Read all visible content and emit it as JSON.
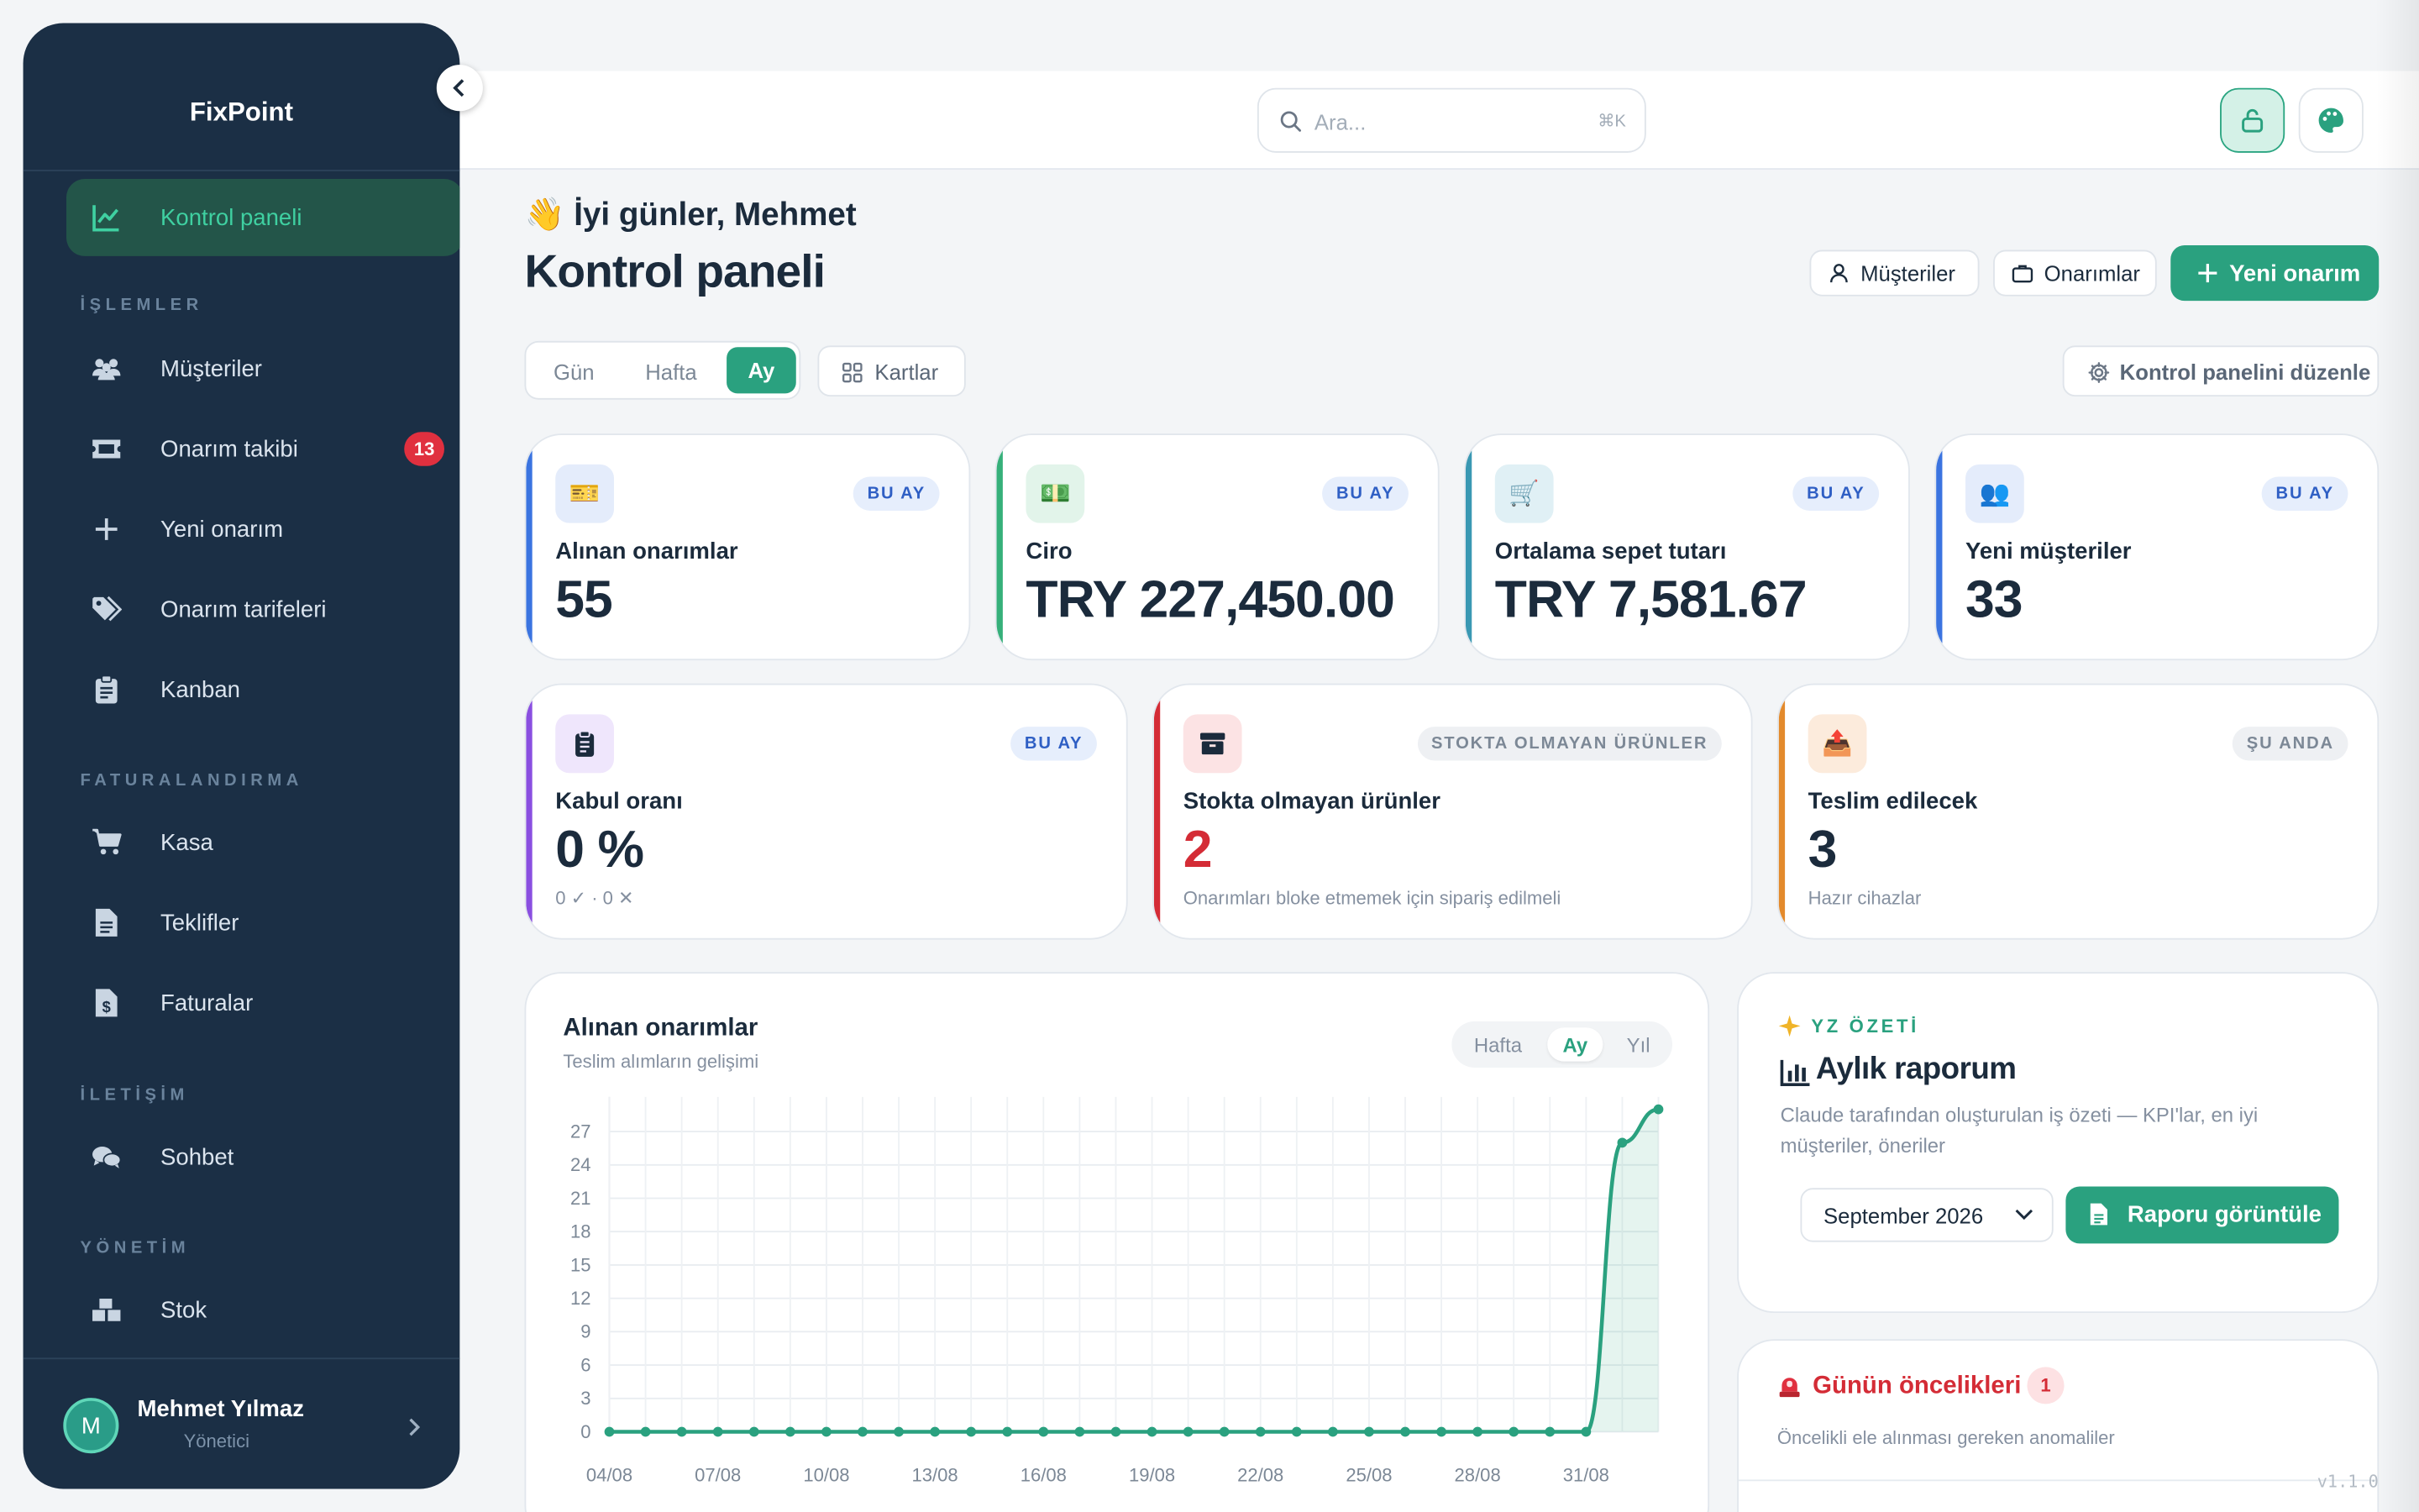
{
  "app": {
    "name": "FixPoint",
    "version": "v1.1.0"
  },
  "sidebar": {
    "active": {
      "label": "Kontrol paneli"
    },
    "sections": {
      "islemler": "İŞLEMLER",
      "faturalandirma": "FATURALANDIRMA",
      "iletisim": "İLETİŞİM",
      "yonetim": "YÖNETİM"
    },
    "items": {
      "musteriler": "Müşteriler",
      "onarim_takibi": "Onarım takibi",
      "onarim_takibi_badge": "13",
      "yeni_onarim": "Yeni onarım",
      "onarim_tarifeleri": "Onarım tarifeleri",
      "kanban": "Kanban",
      "kasa": "Kasa",
      "teklifler": "Teklifler",
      "faturalar": "Faturalar",
      "sohbet": "Sohbet",
      "stok": "Stok"
    },
    "user": {
      "initial": "M",
      "name": "Mehmet Yılmaz",
      "role": "Yönetici"
    }
  },
  "topbar": {
    "search_placeholder": "Ara...",
    "shortcut": "⌘K"
  },
  "header": {
    "greeting": "👋 İyi günler, Mehmet",
    "title": "Kontrol paneli",
    "btn_customers": "Müşteriler",
    "btn_repairs": "Onarımlar",
    "btn_new": "Yeni onarım"
  },
  "toolbar": {
    "periods": [
      "Gün",
      "Hafta",
      "Ay"
    ],
    "active_period": "Ay",
    "cards_label": "Kartlar",
    "edit_label": "Kontrol panelini düzenle"
  },
  "kpis_row1": [
    {
      "icon": "🎫",
      "tag": "BU AY",
      "title": "Alınan onarımlar",
      "value": "55"
    },
    {
      "icon": "💵",
      "tag": "BU AY",
      "title": "Ciro",
      "value": "TRY 227,450.00"
    },
    {
      "icon": "🛒",
      "tag": "BU AY",
      "title": "Ortalama sepet tutarı",
      "value": "TRY 7,581.67"
    },
    {
      "icon": "👥",
      "tag": "BU AY",
      "title": "Yeni müşteriler",
      "value": "33"
    }
  ],
  "kpis_row2": [
    {
      "icon": "clipboard-icon",
      "tag": "BU AY",
      "title": "Kabul oranı",
      "value": "0 %",
      "sub": "0 ✓ · 0 ✕"
    },
    {
      "icon": "box-icon",
      "tag": "STOKTA OLMAYAN ÜRÜNLER",
      "title": "Stokta olmayan ürünler",
      "value": "2",
      "sub": "Onarımları bloke etmemek için sipariş edilmeli"
    },
    {
      "icon": "📤",
      "tag": "ŞU ANDA",
      "title": "Teslim edilecek",
      "value": "3",
      "sub": "Hazır cihazlar"
    }
  ],
  "colors": {
    "accent": "#2aa17f",
    "sidebar": "#1b2f45",
    "blue": "#3b74e0",
    "green": "#36b07a",
    "teal": "#3a98b3",
    "purple": "#8a4fe0",
    "red": "#d42c36",
    "orange": "#e38a2c"
  },
  "chart": {
    "title": "Alınan onarımlar",
    "subtitle": "Teslim alımların gelişimi",
    "periods": [
      "Hafta",
      "Ay",
      "Yıl"
    ],
    "active_period": "Ay"
  },
  "chart_data": {
    "type": "line",
    "x": [
      "04/08",
      "05/08",
      "06/08",
      "07/08",
      "08/08",
      "09/08",
      "10/08",
      "11/08",
      "12/08",
      "13/08",
      "14/08",
      "15/08",
      "16/08",
      "17/08",
      "18/08",
      "19/08",
      "20/08",
      "21/08",
      "22/08",
      "23/08",
      "24/08",
      "25/08",
      "26/08",
      "27/08",
      "28/08",
      "29/08",
      "30/08",
      "31/08",
      "01/09",
      "02/09"
    ],
    "x_tick_labels": [
      "04/08",
      "07/08",
      "10/08",
      "13/08",
      "16/08",
      "19/08",
      "22/08",
      "25/08",
      "28/08",
      "31/08"
    ],
    "series": [
      {
        "values": [
          0,
          0,
          0,
          0,
          0,
          0,
          0,
          0,
          0,
          0,
          0,
          0,
          0,
          0,
          0,
          0,
          0,
          0,
          0,
          0,
          0,
          0,
          0,
          0,
          0,
          0,
          0,
          0,
          26,
          29
        ]
      }
    ],
    "yticks": [
      0,
      3,
      6,
      9,
      12,
      15,
      18,
      21,
      24,
      27
    ],
    "ylim": [
      0,
      29
    ],
    "grid": true,
    "area_fill": true
  },
  "ai_summary": {
    "tag": "YZ ÖZETİ",
    "title": "Aylık raporum",
    "description": "Claude tarafından oluşturulan iş özeti — KPI'lar, en iyi müşteriler, öneriler",
    "month": "September 2026",
    "button": "Raporu görüntüle"
  },
  "priorities": {
    "title": "Günün öncelikleri",
    "count": "1",
    "subtitle": "Öncelikli ele alınması gereken anomaliler"
  }
}
